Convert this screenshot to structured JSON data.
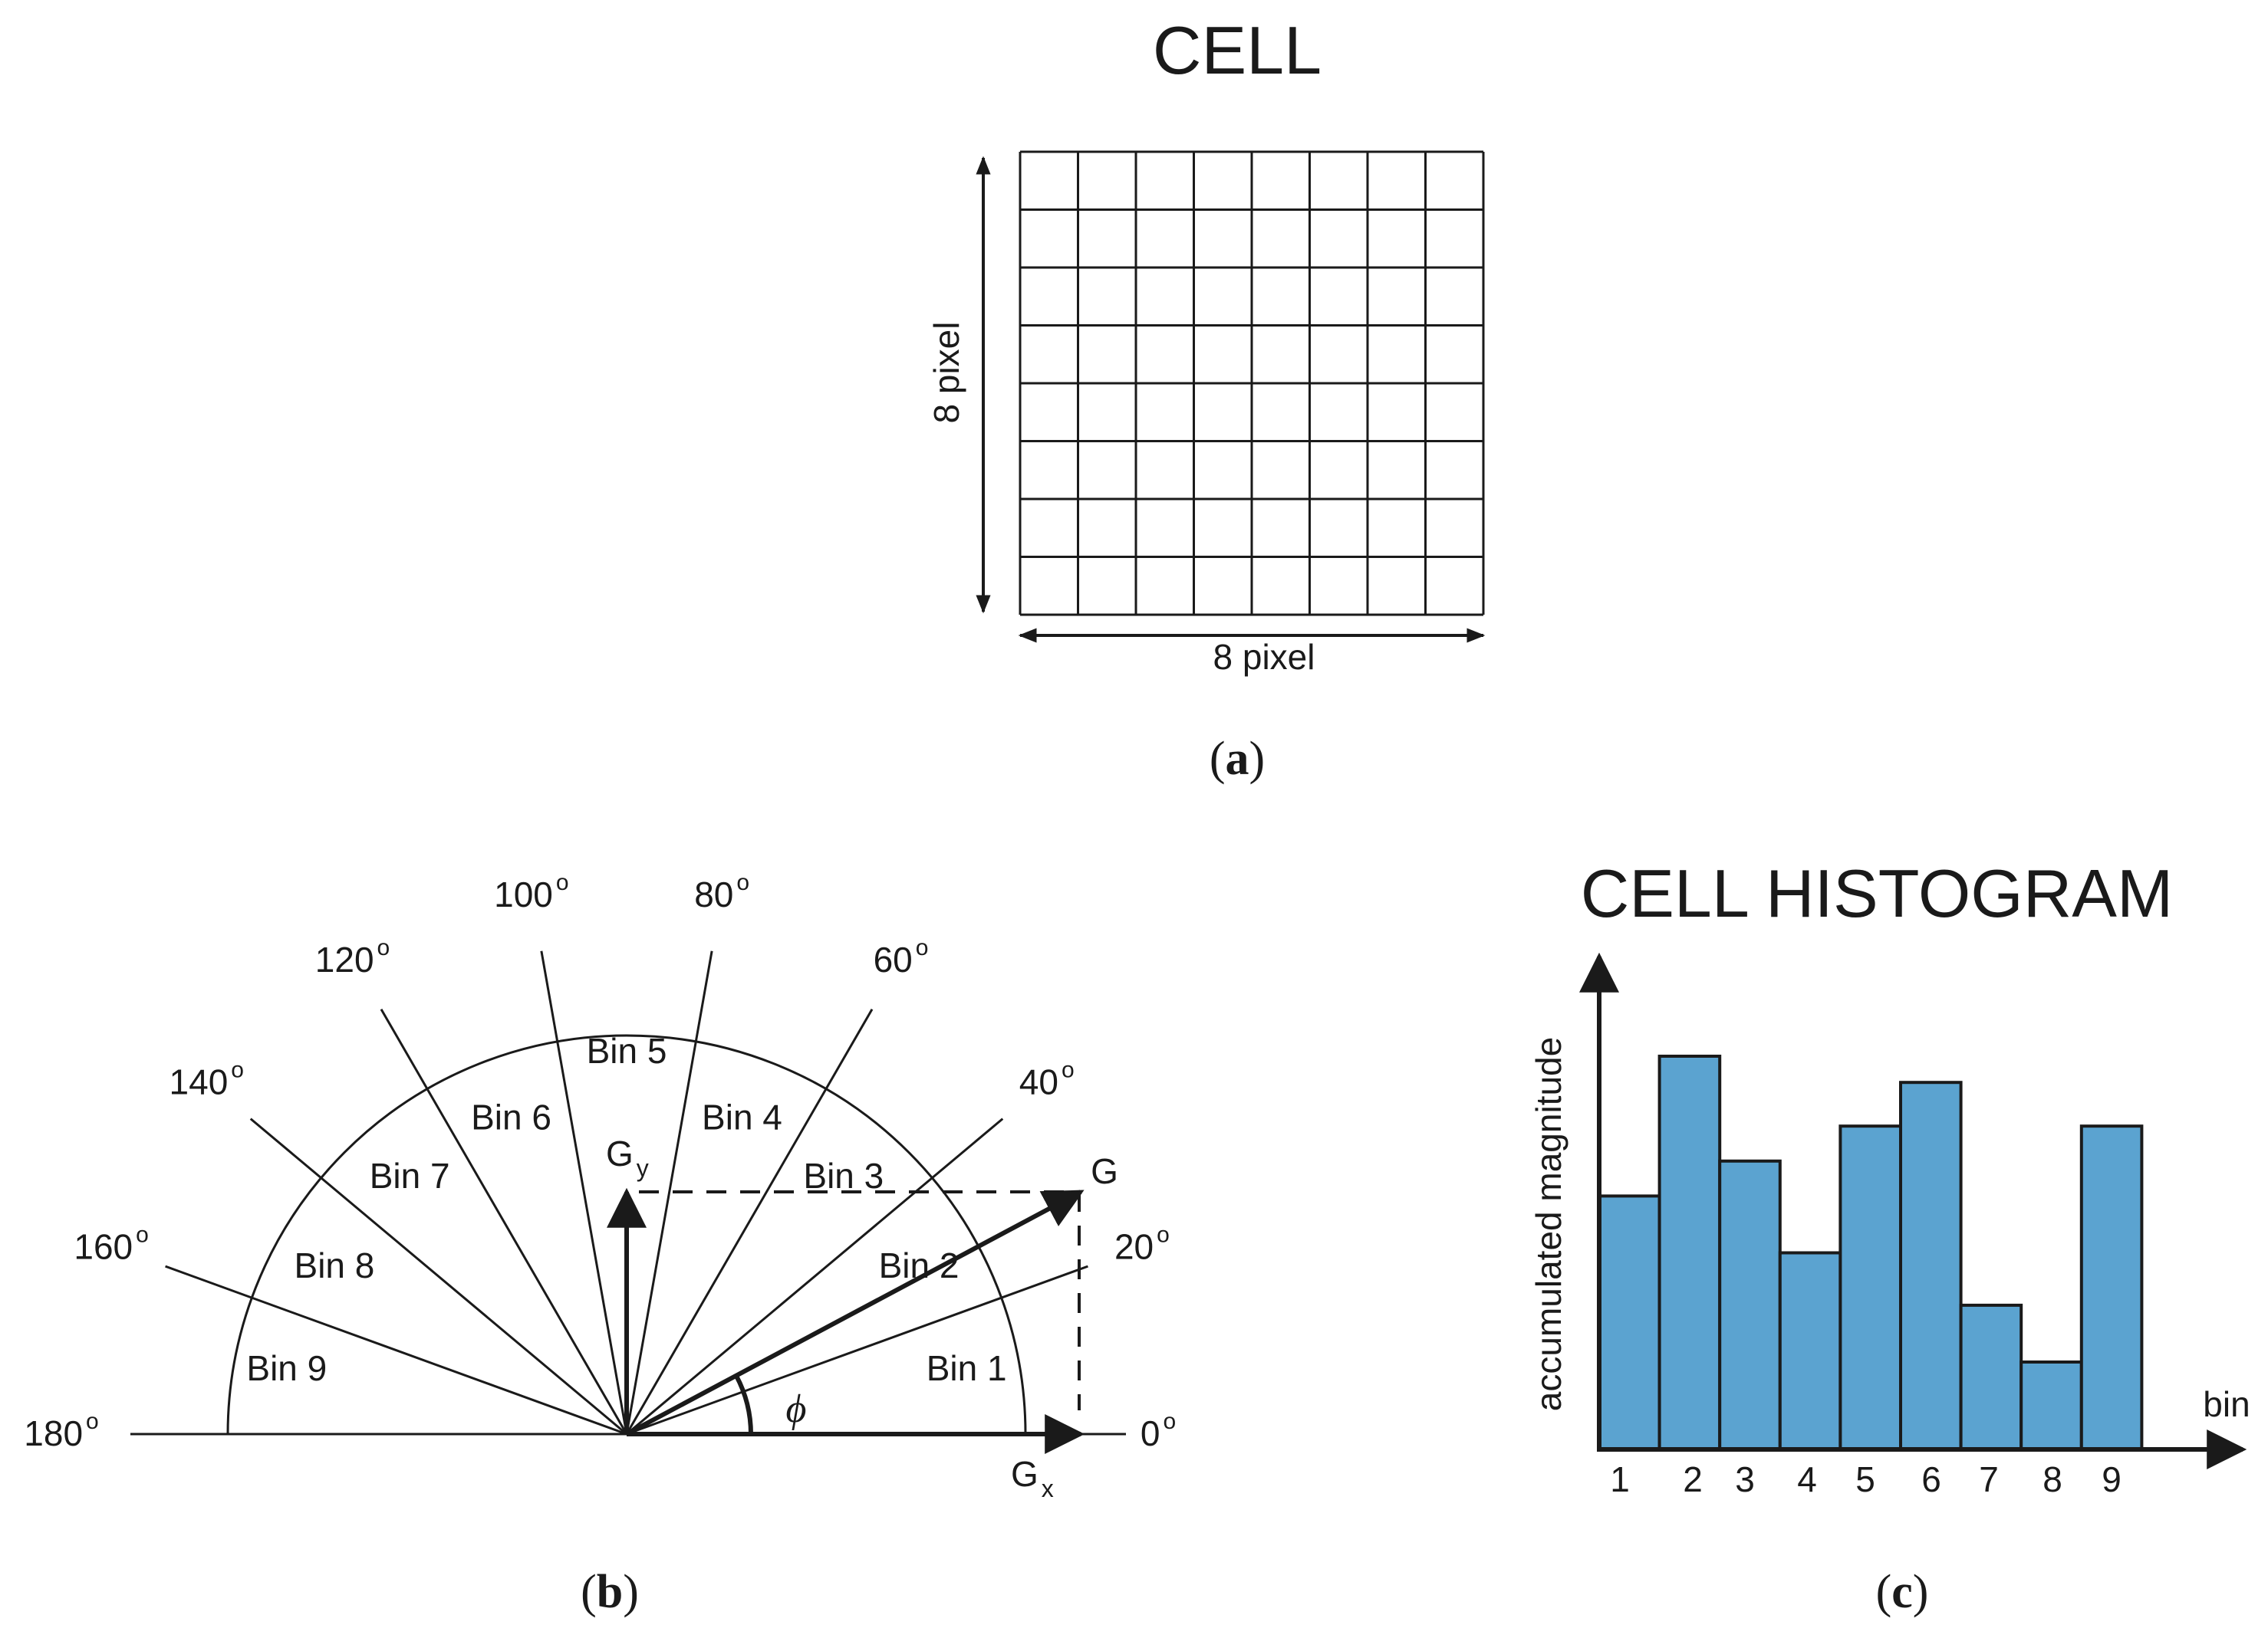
{
  "panel_a": {
    "title": "CELL",
    "grid_rows": 8,
    "grid_cols": 8,
    "height_label": "8 pixel",
    "width_label": "8 pixel",
    "caption_open": "(",
    "caption_letter": "a",
    "caption_close": ")"
  },
  "panel_b": {
    "angle_labels": [
      "180",
      "160",
      "140",
      "120",
      "100",
      "80",
      "60",
      "40",
      "20",
      "0"
    ],
    "angle_values": [
      180,
      160,
      140,
      120,
      100,
      80,
      60,
      40,
      20,
      0
    ],
    "degree_symbol": "o",
    "bin_labels": [
      "Bin 1",
      "Bin 2",
      "Bin 3",
      "Bin 4",
      "Bin 5",
      "Bin 6",
      "Bin 7",
      "Bin 8",
      "Bin 9"
    ],
    "gradient_label": "G",
    "gy_main": "G",
    "gy_sub": "y",
    "gx_main": "G",
    "gx_sub": "x",
    "phi_label": "ϕ",
    "caption_open": "(",
    "caption_letter": "b",
    "caption_close": ")"
  },
  "panel_c": {
    "title": "CELL HISTOGRAM",
    "caption_open": "(",
    "caption_letter": "c",
    "caption_close": ")"
  },
  "colors": {
    "bar_fill": "#5ba3d0",
    "ink": "#1a1a1a"
  },
  "chart_data": {
    "type": "bar",
    "title": "CELL HISTOGRAM",
    "categories": [
      "1",
      "2",
      "3",
      "4",
      "5",
      "6",
      "7",
      "8",
      "9"
    ],
    "values": [
      58,
      90,
      66,
      45,
      74,
      84,
      33,
      20,
      74
    ],
    "ylabel": "accumulated magnitude",
    "xlabel": "bin",
    "ylim": [
      0,
      100
    ],
    "grid": false
  }
}
